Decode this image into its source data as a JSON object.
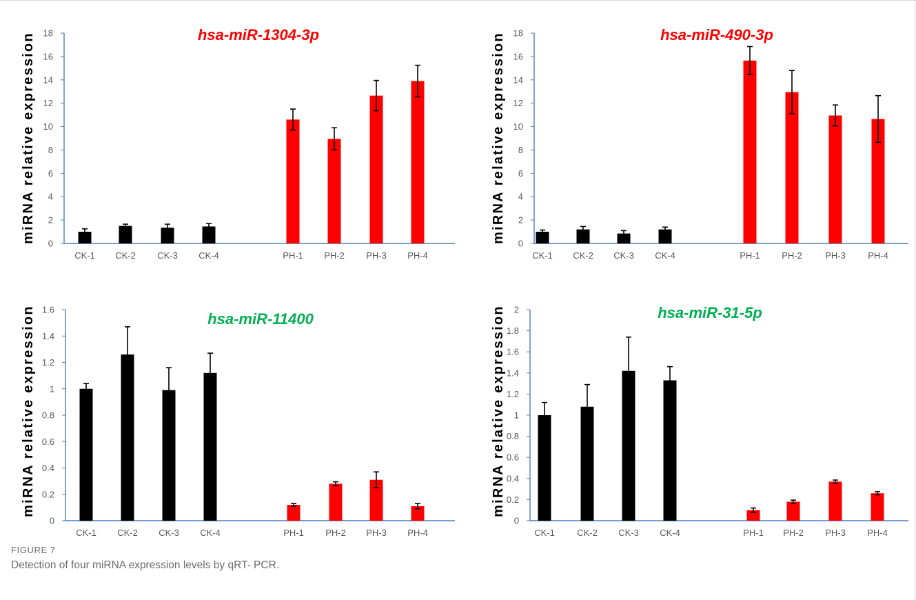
{
  "figure": {
    "label": "FIGURE 7",
    "caption": "Detection of four miRNA expression levels by qRT- PCR."
  },
  "colors": {
    "control": "#000000",
    "treatment": "#ff0000",
    "title_up": "#ff0000",
    "title_down": "#00b050",
    "axis": "#4a7ebb",
    "tick_text": "#595959"
  },
  "chart_data": [
    {
      "type": "bar",
      "title": "hsa-miR-1304-3p",
      "title_color": "#ff0000",
      "ylabel": "miRNA relative expression",
      "xlabel": "",
      "categories": [
        "CK-1",
        "CK-2",
        "CK-3",
        "CK-4",
        "PH-1",
        "PH-2",
        "PH-3",
        "PH-4"
      ],
      "values": [
        1.0,
        1.5,
        1.35,
        1.45,
        10.6,
        8.95,
        12.65,
        13.9
      ],
      "errors": [
        0.25,
        0.15,
        0.3,
        0.25,
        0.9,
        0.95,
        1.3,
        1.35
      ],
      "bar_colors": [
        "#000000",
        "#000000",
        "#000000",
        "#000000",
        "#ff0000",
        "#ff0000",
        "#ff0000",
        "#ff0000"
      ],
      "ylim": [
        0,
        18
      ],
      "yticks": [
        "0",
        "2",
        "4",
        "6",
        "8",
        "10",
        "12",
        "14",
        "16",
        "18"
      ],
      "grid": false,
      "legend": "none"
    },
    {
      "type": "bar",
      "title": "hsa-miR-490-3p",
      "title_color": "#ff0000",
      "ylabel": "miRNA relative expression",
      "xlabel": "",
      "categories": [
        "CK-1",
        "CK-2",
        "CK-3",
        "CK-4",
        "PH-1",
        "PH-2",
        "PH-3",
        "PH-4"
      ],
      "values": [
        1.0,
        1.2,
        0.85,
        1.2,
        15.65,
        12.95,
        10.95,
        10.65
      ],
      "errors": [
        0.15,
        0.25,
        0.25,
        0.2,
        1.2,
        1.85,
        0.9,
        2.0
      ],
      "bar_colors": [
        "#000000",
        "#000000",
        "#000000",
        "#000000",
        "#ff0000",
        "#ff0000",
        "#ff0000",
        "#ff0000"
      ],
      "ylim": [
        0,
        18
      ],
      "yticks": [
        "0",
        "2",
        "4",
        "6",
        "8",
        "10",
        "12",
        "14",
        "16",
        "18"
      ],
      "grid": false,
      "legend": "none"
    },
    {
      "type": "bar",
      "title": "hsa-miR-11400",
      "title_color": "#00b050",
      "ylabel": "miRNA relative expression",
      "xlabel": "",
      "categories": [
        "CK-1",
        "CK-2",
        "CK-3",
        "CK-4",
        "PH-1",
        "PH-2",
        "PH-3",
        "PH-4"
      ],
      "values": [
        1.0,
        1.26,
        0.99,
        1.12,
        0.12,
        0.28,
        0.31,
        0.11
      ],
      "errors": [
        0.04,
        0.21,
        0.17,
        0.15,
        0.01,
        0.015,
        0.06,
        0.02
      ],
      "bar_colors": [
        "#000000",
        "#000000",
        "#000000",
        "#000000",
        "#ff0000",
        "#ff0000",
        "#ff0000",
        "#ff0000"
      ],
      "ylim": [
        0,
        1.6
      ],
      "yticks": [
        "0",
        "0.2",
        "0.4",
        "0.6",
        "0.8",
        "1",
        "1.2",
        "1.4",
        "1.6"
      ],
      "grid": false,
      "legend": "none"
    },
    {
      "type": "bar",
      "title": "hsa-miR-31-5p",
      "title_color": "#00b050",
      "ylabel": "miRNA relative expression",
      "xlabel": "",
      "categories": [
        "CK-1",
        "CK-2",
        "CK-3",
        "CK-4",
        "PH-1",
        "PH-2",
        "PH-3",
        "PH-4"
      ],
      "values": [
        1.0,
        1.08,
        1.42,
        1.33,
        0.1,
        0.18,
        0.37,
        0.26
      ],
      "errors": [
        0.12,
        0.21,
        0.32,
        0.13,
        0.02,
        0.015,
        0.015,
        0.015
      ],
      "bar_colors": [
        "#000000",
        "#000000",
        "#000000",
        "#000000",
        "#ff0000",
        "#ff0000",
        "#ff0000",
        "#ff0000"
      ],
      "ylim": [
        0,
        2
      ],
      "yticks": [
        "0",
        "0.2",
        "0.4",
        "0.6",
        "0.8",
        "1",
        "1.2",
        "1.4",
        "1.6",
        "1.8",
        "2"
      ],
      "grid": false,
      "legend": "none"
    }
  ]
}
